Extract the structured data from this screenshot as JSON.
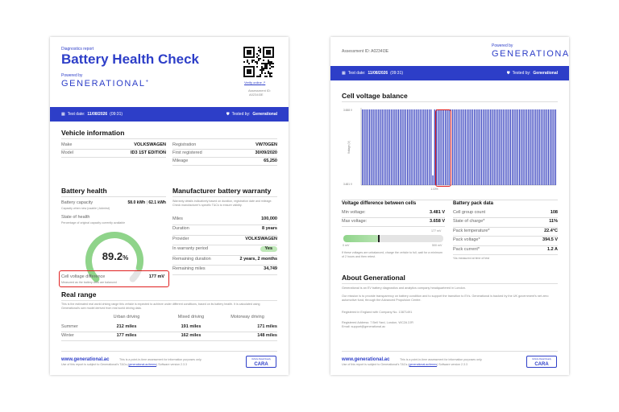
{
  "page1": {
    "report_label": "Diagnostics report",
    "title": "Battery Health Check",
    "powered_by": "Powered by",
    "brand": "GENERATIONAL",
    "verify_link": "Verify online",
    "assessment_id_label": "Assessment ID:",
    "assessment_id": "A0234I3E",
    "test_date_label": "Test date:",
    "test_date": "11/08/2026",
    "test_time": "(09:31)",
    "tested_by_label": "Tested by:",
    "tested_by": "Generational",
    "vehicle": {
      "heading": "Vehicle information",
      "left": [
        {
          "k": "Make",
          "v": "VOLKSWAGEN"
        },
        {
          "k": "Model",
          "v": "ID3 1ST EDITION"
        }
      ],
      "right": [
        {
          "k": "Registration",
          "v": "VW70GEN"
        },
        {
          "k": "First registered",
          "v": "30/09/2020"
        },
        {
          "k": "Mileage",
          "v": "65,250"
        }
      ]
    },
    "battery": {
      "heading": "Battery health",
      "capacity_label": "Battery capacity",
      "capacity_value": "58.0 kWh",
      "capacity_sep": "|",
      "capacity_new": "62.1 kWh",
      "capacity_note": "Capacity when new (usable | Admirst)",
      "soh_label": "State of health",
      "soh_note": "Percentage of original capacity currently available",
      "soh_value": "89.2",
      "soh_unit": "%",
      "soh_fraction": 0.892,
      "cell_diff_label": "Cell voltage difference",
      "cell_diff_value": "177 mV",
      "cell_diff_note": "Measured as the battery cells are balanced"
    },
    "warranty": {
      "heading": "Manufacturer battery warranty",
      "note": "Warranty details indicatively based on duration, registration date and mileage. Check manufacturer's specific T&Cs to ensure validity.",
      "rows": [
        {
          "k": "Miles",
          "v": "100,000"
        },
        {
          "k": "Duration",
          "v": "8 years"
        },
        {
          "k": "Provider",
          "v": "VOLKSWAGEN"
        },
        {
          "k": "In warranty period",
          "v": "Yes"
        },
        {
          "k": "Remaining duration",
          "v": "2 years, 2 months"
        },
        {
          "k": "Remaining miles",
          "v": "34,749"
        }
      ]
    },
    "range": {
      "heading": "Real range",
      "note": "This is the estimated real world driving range this vehicle is expected to achieve under different conditions, based on its battery health. It is calculated using Generational's own model derived from real world driving data.",
      "cols": [
        "Urban driving",
        "Mixed driving",
        "Motorway driving"
      ],
      "rows": [
        {
          "k": "Summer",
          "v": [
            "212 miles",
            "191 miles",
            "171 miles"
          ]
        },
        {
          "k": "Winter",
          "v": [
            "177 miles",
            "162 miles",
            "148 miles"
          ]
        }
      ]
    },
    "footer": {
      "site": "www.generational.ac",
      "line1": "This is a point-in-time assessment for information purposes only.",
      "line2a": "Use of this report is subject to Generational's T&Cs (",
      "line2_link": "generational.ac/terms",
      "line2b": ")  Software version 2.3.3",
      "logo_top": "Vehicle Retail Ready",
      "logo": "CARA"
    }
  },
  "page2": {
    "assessment_id_full": "Assessment ID: A0234I3E",
    "powered_by": "Powered by",
    "brand": "GENERATIONAL",
    "test_date_label": "Test date:",
    "test_date": "11/08/2026",
    "test_time": "(09:31)",
    "tested_by_label": "Tested by:",
    "tested_by": "Generational",
    "balance_heading": "Cell voltage balance",
    "y_axis_label": "Voltage (V)",
    "y_top": "3.658 V",
    "y_bottom": "3.481 V",
    "min_cell_label": "1.10%",
    "voltdiff": {
      "heading": "Voltage difference between cells",
      "rows": [
        {
          "k": "Min voltage:",
          "v": "3.481 V"
        },
        {
          "k": "Max voltage:",
          "v": "3.658 V"
        }
      ],
      "scale_marker": "177 mV",
      "scale_left": "0 mV",
      "scale_right": "500 mV",
      "marker_fraction": 0.354,
      "note": "If these voltages are unbalanced, charge the vehicle to full, wait for a minimum of 2 hours and then retest."
    },
    "pack": {
      "heading": "Battery pack data",
      "rows": [
        {
          "k": "Cell group count",
          "v": "108"
        },
        {
          "k": "State of charge*",
          "v": "11%"
        },
        {
          "k": "Pack temperature*",
          "v": "22.4°C"
        },
        {
          "k": "Pack voltage*",
          "v": "394.5 V"
        },
        {
          "k": "Pack current*",
          "v": "1.2 A"
        }
      ],
      "note": "*As measured at time of test"
    },
    "about": {
      "heading": "About Generational",
      "p1": "Generational is an EV battery diagnostics and analytics company headquartered in London.",
      "p2": "Our mission is to provide transparency on battery condition and to support the transition to EVs. Generational is backed by the UK government's net zero automotive fund, through the Advanced Propulsion Centre.",
      "p3": "Registered in England with Company No. 13871491",
      "p4a": "Registered Address: 7 Bell Yard, London, WC2A 2JR",
      "p4b": "Email: support@generational.ac"
    },
    "footer": {
      "site": "www.generational.ac",
      "line1": "This is a point-in-time assessment for information purposes only.",
      "line2a": "Use of this report is subject to Generational's T&Cs (",
      "line2_link": "generational.ac/terms",
      "line2b": ")  Software version 2.3.3",
      "logo_top": "Vehicle Retail Ready",
      "logo": "CARA"
    }
  },
  "chart_data": {
    "type": "bar",
    "title": "Cell voltage balance",
    "ylabel": "Voltage (V)",
    "ylim": [
      3.481,
      3.658
    ],
    "cell_count": 108,
    "typical_value": 3.658,
    "min_cell_index": 39,
    "min_value": 3.481,
    "grid": false,
    "bar_color": "#3a45c0"
  },
  "colors": {
    "accent": "#2d3ec8",
    "highlight": "#e02020",
    "gauge_fill": "#8fd48a",
    "gauge_track": "#e4e4e4",
    "yes_badge": "#bfe8b8"
  }
}
